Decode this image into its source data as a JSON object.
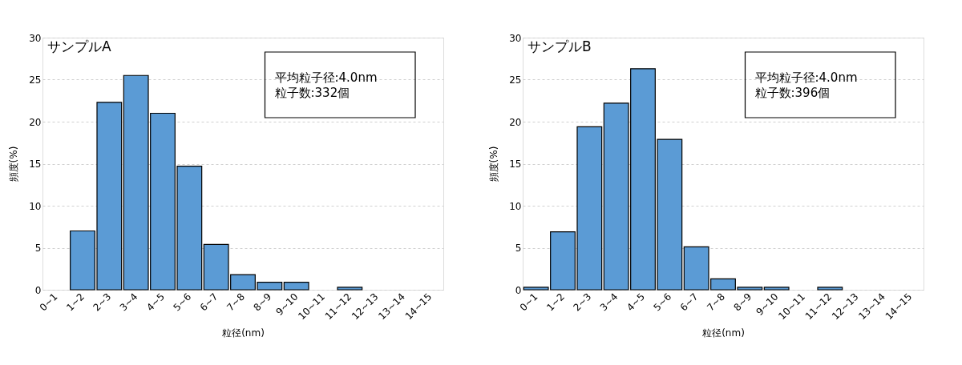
{
  "chart_data": [
    {
      "type": "bar",
      "title": "サンプルA",
      "xlabel": "粒径(nm)",
      "ylabel": "頻度(%)",
      "categories": [
        "0~1",
        "1~2",
        "2~3",
        "3~4",
        "4~5",
        "5~6",
        "6~7",
        "7~8",
        "8~9",
        "9~10",
        "10~11",
        "11~12",
        "12~13",
        "13~14",
        "14~15"
      ],
      "values": [
        0,
        7.0,
        22.3,
        25.5,
        21.0,
        14.7,
        5.4,
        1.8,
        0.9,
        0.9,
        0,
        0.3,
        0,
        0,
        0
      ],
      "color": "#5b9bd5",
      "ylim": [
        0,
        30
      ],
      "yticks": [
        0,
        5,
        10,
        15,
        20,
        25,
        30
      ],
      "grid": "y",
      "annotations": [
        "平均粒子径:4.0nm",
        "粒子数:332個"
      ]
    },
    {
      "type": "bar",
      "title": "サンプルB",
      "xlabel": "粒径(nm)",
      "ylabel": "頻度(%)",
      "categories": [
        "0~1",
        "1~2",
        "2~3",
        "3~4",
        "4~5",
        "5~6",
        "6~7",
        "7~8",
        "8~9",
        "9~10",
        "10~11",
        "11~12",
        "12~13",
        "13~14",
        "14~15"
      ],
      "values": [
        0.3,
        6.9,
        19.4,
        22.2,
        26.3,
        17.9,
        5.1,
        1.3,
        0.3,
        0.3,
        0,
        0.3,
        0,
        0,
        0
      ],
      "color": "#5b9bd5",
      "ylim": [
        0,
        30
      ],
      "yticks": [
        0,
        5,
        10,
        15,
        20,
        25,
        30
      ],
      "grid": "y",
      "annotations": [
        "平均粒子径:4.0nm",
        "粒子数:396個"
      ]
    }
  ]
}
